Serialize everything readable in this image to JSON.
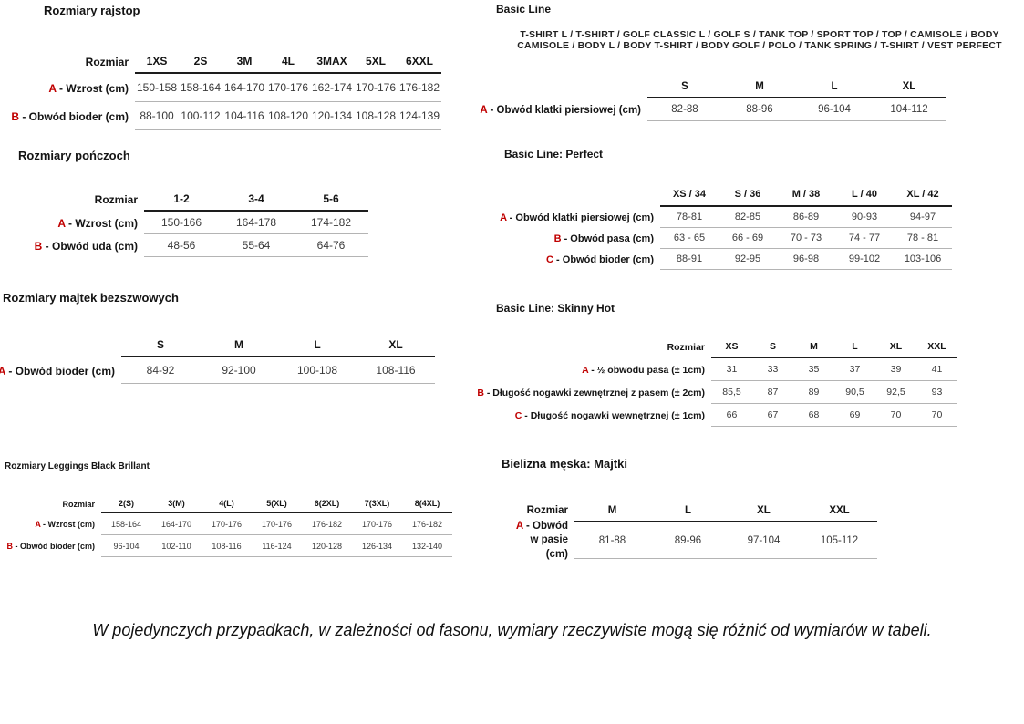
{
  "note": "W pojedynczych przypadkach, w zależności od fasonu, wymiary rzeczywiste mogą się różnić od wymiarów w tabeli.",
  "colors": {
    "accent_red": "#c00000",
    "text": "#1a1a1a",
    "rule_dark": "#1d1d1d",
    "rule_light": "#b4b4b4"
  },
  "tables": {
    "rajstopy": {
      "title": "Rozmiary rajstop",
      "corner": "Rozmiar",
      "columns": [
        "1XS",
        "2S",
        "3M",
        "4L",
        "3MAX",
        "5XL",
        "6XXL"
      ],
      "rows": [
        {
          "prefix": "A",
          "label": "- Wzrost (cm)",
          "values": [
            "150-158",
            "158-164",
            "164-170",
            "170-176",
            "162-174",
            "170-176",
            "176-182"
          ]
        },
        {
          "prefix": "B",
          "label": "- Obwód bioder (cm)",
          "values": [
            "88-100",
            "100-112",
            "104-116",
            "108-120",
            "120-134",
            "108-128",
            "124-139"
          ]
        }
      ]
    },
    "ponczochy": {
      "title": "Rozmiary pończoch",
      "corner": "Rozmiar",
      "columns": [
        "1-2",
        "3-4",
        "5-6"
      ],
      "rows": [
        {
          "prefix": "A",
          "label": "- Wzrost (cm)",
          "values": [
            "150-166",
            "164-178",
            "174-182"
          ]
        },
        {
          "prefix": "B",
          "label": "- Obwód uda (cm)",
          "values": [
            "48-56",
            "55-64",
            "64-76"
          ]
        }
      ]
    },
    "majtki_bezszwowe": {
      "title": "Rozmiary majtek bezszwowych",
      "corner": "",
      "columns": [
        "S",
        "M",
        "L",
        "XL"
      ],
      "rows": [
        {
          "prefix": "A",
          "label": "- Obwód bioder (cm)",
          "values": [
            "84-92",
            "92-100",
            "100-108",
            "108-116"
          ]
        }
      ]
    },
    "leggings": {
      "title": "Rozmiary Leggings Black Brillant",
      "corner": "Rozmiar",
      "columns": [
        "2(S)",
        "3(M)",
        "4(L)",
        "5(XL)",
        "6(2XL)",
        "7(3XL)",
        "8(4XL)"
      ],
      "rows": [
        {
          "prefix": "A",
          "label": "- Wzrost (cm)",
          "values": [
            "158-164",
            "164-170",
            "170-176",
            "170-176",
            "176-182",
            "170-176",
            "176-182"
          ]
        },
        {
          "prefix": "B",
          "label": "- Obwód bioder (cm)",
          "values": [
            "96-104",
            "102-110",
            "108-116",
            "116-124",
            "120-128",
            "126-134",
            "132-140"
          ]
        }
      ]
    },
    "basic_line": {
      "title": "Basic Line",
      "product_lines": [
        "T-SHIRT L / T-SHIRT / GOLF CLASSIC L / GOLF S / TANK TOP / SPORT TOP / TOP / CAMISOLE / BODY",
        "CAMISOLE / BODY L / BODY T-SHIRT / BODY GOLF / POLO / TANK SPRING / T-SHIRT / VEST PERFECT"
      ],
      "corner": "",
      "columns": [
        "S",
        "M",
        "L",
        "XL"
      ],
      "rows": [
        {
          "prefix": "A",
          "label": "- Obwód klatki piersiowej (cm)",
          "values": [
            "82-88",
            "88-96",
            "96-104",
            "104-112"
          ]
        }
      ]
    },
    "basic_line_perfect": {
      "title": "Basic Line: Perfect",
      "corner": "",
      "columns": [
        "XS / 34",
        "S / 36",
        "M / 38",
        "L / 40",
        "XL / 42"
      ],
      "rows": [
        {
          "prefix": "A",
          "label": "- Obwód klatki piersiowej (cm)",
          "values": [
            "78-81",
            "82-85",
            "86-89",
            "90-93",
            "94-97"
          ]
        },
        {
          "prefix": "B",
          "label": "- Obwód pasa (cm)",
          "values": [
            "63 - 65",
            "66 - 69",
            "70 - 73",
            "74 - 77",
            "78 - 81"
          ]
        },
        {
          "prefix": "C",
          "label": "- Obwód bioder (cm)",
          "values": [
            "88-91",
            "92-95",
            "96-98",
            "99-102",
            "103-106"
          ]
        }
      ]
    },
    "skinny_hot": {
      "title": "Basic Line: Skinny Hot",
      "corner": "Rozmiar",
      "columns": [
        "XS",
        "S",
        "M",
        "L",
        "XL",
        "XXL"
      ],
      "rows": [
        {
          "prefix": "A",
          "label": "- ½ obwodu pasa (± 1cm)",
          "values": [
            "31",
            "33",
            "35",
            "37",
            "39",
            "41"
          ]
        },
        {
          "prefix": "B",
          "label": "- Długość nogawki zewnętrznej z pasem (± 2cm)",
          "values": [
            "85,5",
            "87",
            "89",
            "90,5",
            "92,5",
            "93"
          ]
        },
        {
          "prefix": "C",
          "label": "- Długość nogawki wewnętrznej (± 1cm)",
          "values": [
            "66",
            "67",
            "68",
            "69",
            "70",
            "70"
          ]
        }
      ]
    },
    "bielizna_meska": {
      "title": "Bielizna męska: Majtki",
      "corner": "Rozmiar",
      "columns": [
        "M",
        "L",
        "XL",
        "XXL"
      ],
      "rows": [
        {
          "prefix": "A",
          "label": "- Obwód w pasie (cm)",
          "values": [
            "81-88",
            "89-96",
            "97-104",
            "105-112"
          ]
        }
      ]
    }
  }
}
